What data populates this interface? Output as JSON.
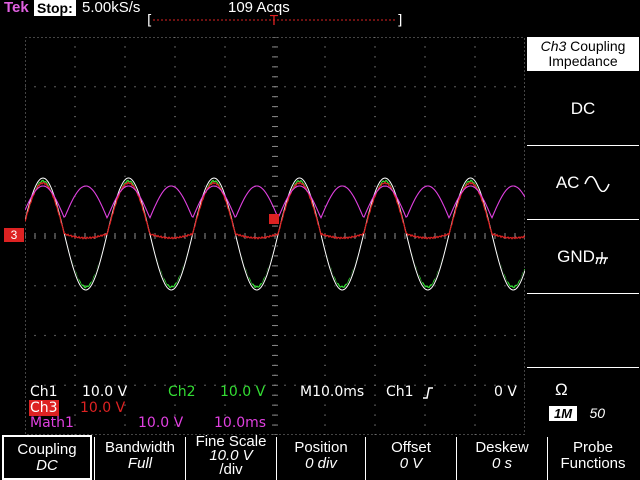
{
  "status": {
    "brand": "Tek",
    "run_state": "Stop:",
    "sample_rate": "5.00kS/s",
    "acquisitions": "109 Acqs",
    "trigger_marker": "T"
  },
  "ground_marker": "3",
  "readouts": {
    "ch1": {
      "label": "Ch1",
      "scale": "10.0 V"
    },
    "ch2": {
      "label": "Ch2",
      "scale": "10.0 V"
    },
    "ch3": {
      "label": "Ch3",
      "scale": "10.0 V"
    },
    "math1": {
      "label": "Math1",
      "scale": "10.0 V",
      "time": "10.0ms"
    },
    "timebase": "M10.0ms",
    "trigger_source": "Ch1",
    "trigger_level": "0 V"
  },
  "side_menu": {
    "title_channel": "Ch3",
    "title_text": "Coupling",
    "title_line2": "Impedance",
    "dc": "DC",
    "ac": "AC",
    "gnd": "GND",
    "omega": "Ω",
    "imp_1m": "1M",
    "imp_50": "50"
  },
  "bottom_menu": [
    {
      "label": "Coupling",
      "value": "DC"
    },
    {
      "label": "Bandwidth",
      "value": "Full"
    },
    {
      "label": "Fine Scale",
      "value": "10.0 V",
      "value2": "/div"
    },
    {
      "label": "Position",
      "value": "0 div"
    },
    {
      "label": "Offset",
      "value": "0 V"
    },
    {
      "label": "Deskew",
      "value": "0 s"
    },
    {
      "label": "Probe",
      "label2": "Functions"
    }
  ],
  "colors": {
    "ch1": "#ffffff",
    "ch2": "#33dd33",
    "ch3": "#dd2222",
    "math1": "#e040e0",
    "graticule": "#888888"
  },
  "waveforms": {
    "period_ms": 17.2,
    "ch1_ch2_amplitude_div": 1.06,
    "ch3_amplitude_div": 0.05,
    "math1_description_note": "",
    "time_span_ms": 100
  }
}
